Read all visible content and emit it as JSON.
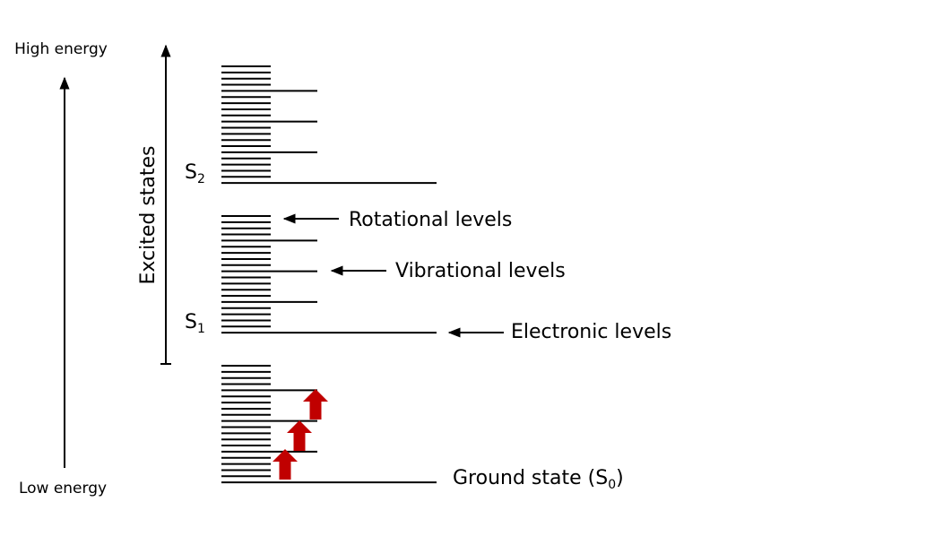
{
  "axis": {
    "high_label": "High energy",
    "low_label": "Low energy",
    "excited_label": "Excited states"
  },
  "states": [
    {
      "label": "S",
      "subscript": "2"
    },
    {
      "label": "S",
      "subscript": "1"
    }
  ],
  "annotations": {
    "rotational": "Rotational levels",
    "vibrational": "Vibrational levels",
    "electronic": "Electronic levels",
    "ground_prefix": "Ground state (S",
    "ground_sub": "0",
    "ground_suffix": ")"
  },
  "colors": {
    "line": "#000000",
    "excitation_arrow": "#c00000"
  }
}
